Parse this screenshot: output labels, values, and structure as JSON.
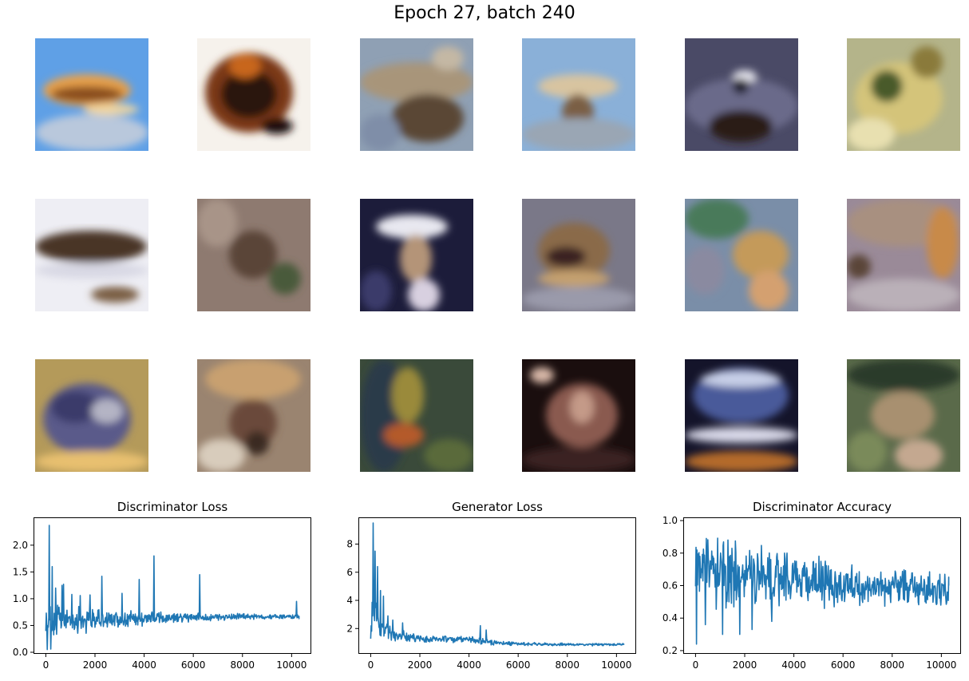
{
  "figure": {
    "suptitle": "Epoch 27, batch 240"
  },
  "samples": [
    {
      "name": "sample-r1c1-sky-orange-blob",
      "bg": "#5fa0e6",
      "shapes": [
        [
          "#e7a04c",
          10,
          45,
          110,
          40
        ],
        [
          "#8a4e1e",
          20,
          60,
          90,
          20
        ],
        [
          "#f0d6a0",
          60,
          82,
          70,
          14
        ],
        [
          "#b9c8dc",
          0,
          95,
          142,
          46
        ]
      ]
    },
    {
      "name": "sample-r1c2-dark-flower",
      "bg": "#f6f2ec",
      "shapes": [
        [
          "#7a3816",
          10,
          18,
          110,
          100
        ],
        [
          "#2a1408",
          30,
          40,
          70,
          60
        ],
        [
          "#c8661e",
          40,
          20,
          40,
          30
        ],
        [
          "#1a0e08",
          80,
          100,
          40,
          20
        ]
      ]
    },
    {
      "name": "sample-r1c3-muddy-landscape",
      "bg": "#8fa0b4",
      "shapes": [
        [
          "#a8957a",
          0,
          30,
          142,
          50
        ],
        [
          "#5a4636",
          40,
          70,
          90,
          60
        ],
        [
          "#7f8ea8",
          0,
          95,
          50,
          46
        ],
        [
          "#c4b8a4",
          90,
          10,
          40,
          30
        ]
      ]
    },
    {
      "name": "sample-r1c4-mushroom-sky",
      "bg": "#8ab0d8",
      "shapes": [
        [
          "#d8c4a0",
          20,
          45,
          100,
          30
        ],
        [
          "#7a5e44",
          50,
          70,
          40,
          50
        ],
        [
          "#9aa6b4",
          0,
          100,
          142,
          41
        ]
      ]
    },
    {
      "name": "sample-r1c5-dark-car",
      "bg": "#4a4a66",
      "shapes": [
        [
          "#6a6a8a",
          0,
          50,
          142,
          70
        ],
        [
          "#e8e8f0",
          60,
          40,
          30,
          15
        ],
        [
          "#2a1a14",
          30,
          90,
          80,
          40
        ],
        [
          "#1c1c2c",
          60,
          50,
          20,
          20
        ]
      ]
    },
    {
      "name": "sample-r1c6-yellow-foliage",
      "bg": "#b4b48a",
      "shapes": [
        [
          "#d4c47a",
          10,
          30,
          110,
          90
        ],
        [
          "#4a5a2a",
          30,
          40,
          40,
          40
        ],
        [
          "#8a7a3a",
          80,
          10,
          40,
          40
        ],
        [
          "#e8e0b0",
          0,
          100,
          60,
          41
        ]
      ]
    },
    {
      "name": "sample-r2c1-snow-dogs",
      "bg": "#eeeef4",
      "shapes": [
        [
          "#4a3426",
          0,
          40,
          140,
          40
        ],
        [
          "#7a5e44",
          70,
          110,
          60,
          20
        ],
        [
          "#d8d8e4",
          0,
          80,
          142,
          20
        ]
      ]
    },
    {
      "name": "sample-r2c2-brown-blur",
      "bg": "#8e7a70",
      "shapes": [
        [
          "#5a4438",
          40,
          40,
          60,
          60
        ],
        [
          "#a89488",
          0,
          0,
          50,
          60
        ],
        [
          "#4a5a3a",
          90,
          80,
          40,
          40
        ]
      ]
    },
    {
      "name": "sample-r2c3-dark-bird",
      "bg": "#1c1c3a",
      "shapes": [
        [
          "#e8e8f0",
          20,
          20,
          90,
          30
        ],
        [
          "#b49478",
          50,
          45,
          40,
          60
        ],
        [
          "#3a3a6a",
          0,
          90,
          40,
          51
        ],
        [
          "#d8d0e0",
          60,
          100,
          40,
          41
        ]
      ]
    },
    {
      "name": "sample-r2c4-rocky-mouth",
      "bg": "#7a7888",
      "shapes": [
        [
          "#8a6a4a",
          20,
          30,
          90,
          70
        ],
        [
          "#3a2420",
          30,
          60,
          50,
          25
        ],
        [
          "#c4a070",
          20,
          90,
          90,
          20
        ],
        [
          "#9a9aaa",
          0,
          110,
          142,
          31
        ]
      ]
    },
    {
      "name": "sample-r2c5-green-mosaic",
      "bg": "#7a8ea8",
      "shapes": [
        [
          "#4a7a5a",
          0,
          0,
          80,
          50
        ],
        [
          "#c49a5a",
          60,
          40,
          70,
          60
        ],
        [
          "#8a8aa0",
          0,
          60,
          50,
          60
        ],
        [
          "#d4a070",
          80,
          90,
          50,
          50
        ]
      ]
    },
    {
      "name": "sample-r2c6-grey-wall",
      "bg": "#9a8a98",
      "shapes": [
        [
          "#a89080",
          0,
          0,
          142,
          60
        ],
        [
          "#c88a4a",
          100,
          10,
          40,
          90
        ],
        [
          "#5a4438",
          0,
          70,
          30,
          30
        ],
        [
          "#bab0b8",
          0,
          100,
          142,
          41
        ]
      ]
    },
    {
      "name": "sample-r3c1-blue-wave",
      "bg": "#b49a5a",
      "shapes": [
        [
          "#5a5a8a",
          10,
          30,
          110,
          90
        ],
        [
          "#3a3a6a",
          20,
          40,
          60,
          40
        ],
        [
          "#b4b4c4",
          70,
          50,
          40,
          30
        ],
        [
          "#e8c070",
          0,
          115,
          142,
          26
        ]
      ]
    },
    {
      "name": "sample-r3c2-texture-face",
      "bg": "#9a8470",
      "shapes": [
        [
          "#c8a070",
          10,
          0,
          120,
          50
        ],
        [
          "#6a4a3a",
          40,
          50,
          60,
          60
        ],
        [
          "#d8ccbc",
          0,
          100,
          60,
          41
        ],
        [
          "#3a2a20",
          60,
          90,
          30,
          30
        ]
      ]
    },
    {
      "name": "sample-r3c3-green-dark",
      "bg": "#3a4a3a",
      "shapes": [
        [
          "#2a3a4a",
          0,
          0,
          60,
          142
        ],
        [
          "#9a8a3a",
          40,
          10,
          40,
          70
        ],
        [
          "#b45a2a",
          30,
          80,
          50,
          30
        ],
        [
          "#5a6a3a",
          80,
          100,
          62,
          41
        ]
      ]
    },
    {
      "name": "sample-r3c4-dark-cat",
      "bg": "#1a0e0e",
      "shapes": [
        [
          "#8a5a50",
          30,
          30,
          90,
          80
        ],
        [
          "#c49a88",
          60,
          40,
          30,
          40
        ],
        [
          "#3a2020",
          0,
          110,
          142,
          31
        ],
        [
          "#d8b8a8",
          10,
          10,
          30,
          20
        ]
      ]
    },
    {
      "name": "sample-r3c5-blue-shoe",
      "bg": "#14142a",
      "shapes": [
        [
          "#4a5a9a",
          10,
          10,
          120,
          70
        ],
        [
          "#c8d0e8",
          20,
          15,
          100,
          20
        ],
        [
          "#d8d8e8",
          0,
          85,
          142,
          20
        ],
        [
          "#b46a2a",
          0,
          115,
          142,
          26
        ]
      ]
    },
    {
      "name": "sample-r3c6-green-weeds",
      "bg": "#5a6a4a",
      "shapes": [
        [
          "#2a3a2a",
          0,
          0,
          142,
          40
        ],
        [
          "#a89070",
          30,
          40,
          80,
          60
        ],
        [
          "#7a8a5a",
          0,
          90,
          50,
          51
        ],
        [
          "#c4a890",
          60,
          100,
          60,
          41
        ]
      ]
    }
  ],
  "chart_data": [
    {
      "type": "line",
      "title": "Discriminator Loss",
      "xlabel": "",
      "ylabel": "",
      "xlim": [
        -500,
        10800
      ],
      "ylim": [
        -0.03,
        2.52
      ],
      "xticks": [
        0,
        2000,
        4000,
        6000,
        8000,
        10000
      ],
      "yticks": [
        0.0,
        0.5,
        1.0,
        1.5,
        2.0
      ],
      "ytick_labels": [
        "0.0",
        "0.5",
        "1.0",
        "1.5",
        "2.0"
      ],
      "grid": false,
      "series": [
        {
          "color": "#1f77b4",
          "band": [
            [
              0,
              0.3,
              0.95
            ],
            [
              200,
              0.15,
              1.0
            ],
            [
              600,
              0.2,
              0.95
            ],
            [
              1000,
              0.3,
              0.9
            ],
            [
              2000,
              0.35,
              0.85
            ],
            [
              3000,
              0.42,
              0.8
            ],
            [
              4000,
              0.48,
              0.8
            ],
            [
              5000,
              0.52,
              0.75
            ],
            [
              6000,
              0.55,
              0.75
            ],
            [
              7000,
              0.58,
              0.74
            ],
            [
              8000,
              0.6,
              0.73
            ],
            [
              9000,
              0.61,
              0.72
            ],
            [
              10000,
              0.62,
              0.72
            ],
            [
              10300,
              0.62,
              0.72
            ]
          ],
          "spikes": [
            [
              50,
              0.05
            ],
            [
              130,
              2.37
            ],
            [
              200,
              0.06
            ],
            [
              260,
              1.6
            ],
            [
              400,
              1.2
            ],
            [
              650,
              1.25
            ],
            [
              720,
              1.27
            ],
            [
              1050,
              1.08
            ],
            [
              1400,
              1.06
            ],
            [
              1800,
              1.07
            ],
            [
              2270,
              1.42
            ],
            [
              3100,
              1.1
            ],
            [
              3800,
              1.36
            ],
            [
              4400,
              1.8
            ],
            [
              6250,
              1.45
            ],
            [
              10200,
              0.95
            ]
          ],
          "last": 0.68
        }
      ]
    },
    {
      "type": "line",
      "title": "Generator Loss",
      "xlabel": "",
      "ylabel": "",
      "xlim": [
        -500,
        10800
      ],
      "ylim": [
        0.2,
        9.9
      ],
      "xticks": [
        0,
        2000,
        4000,
        6000,
        8000,
        10000
      ],
      "yticks": [
        2,
        4,
        6,
        8
      ],
      "ytick_labels": [
        "2",
        "4",
        "6",
        "8"
      ],
      "grid": false,
      "series": [
        {
          "color": "#1f77b4",
          "band": [
            [
              0,
              0.7,
              3.5
            ],
            [
              150,
              1.5,
              6.0
            ],
            [
              300,
              1.2,
              4.2
            ],
            [
              500,
              1.1,
              3.0
            ],
            [
              800,
              1.0,
              2.2
            ],
            [
              1200,
              1.0,
              1.9
            ],
            [
              2000,
              0.95,
              1.6
            ],
            [
              3000,
              0.95,
              1.5
            ],
            [
              4000,
              0.9,
              1.5
            ],
            [
              4600,
              0.85,
              1.3
            ],
            [
              5000,
              0.8,
              1.2
            ],
            [
              6000,
              0.78,
              1.05
            ],
            [
              7000,
              0.75,
              1.0
            ],
            [
              8000,
              0.75,
              0.98
            ],
            [
              9000,
              0.75,
              0.98
            ],
            [
              10300,
              0.78,
              0.98
            ]
          ],
          "spikes": [
            [
              100,
              9.5
            ],
            [
              180,
              7.5
            ],
            [
              280,
              6.4
            ],
            [
              400,
              4.7
            ],
            [
              520,
              4.3
            ],
            [
              700,
              2.9
            ],
            [
              900,
              2.6
            ],
            [
              1300,
              2.4
            ],
            [
              4450,
              2.2
            ],
            [
              4700,
              1.9
            ]
          ],
          "last": 0.85
        }
      ]
    },
    {
      "type": "line",
      "title": "Discriminator Accuracy",
      "xlabel": "",
      "ylabel": "",
      "xlim": [
        -500,
        10800
      ],
      "ylim": [
        0.18,
        1.02
      ],
      "xticks": [
        0,
        2000,
        4000,
        6000,
        8000,
        10000
      ],
      "yticks": [
        0.2,
        0.4,
        0.6,
        0.8,
        1.0
      ],
      "ytick_labels": [
        "0.2",
        "0.4",
        "0.6",
        "0.8",
        "1.0"
      ],
      "grid": false,
      "series": [
        {
          "color": "#1f77b4",
          "band": [
            [
              0,
              0.45,
              1.0
            ],
            [
              300,
              0.45,
              0.98
            ],
            [
              1000,
              0.45,
              0.95
            ],
            [
              2000,
              0.45,
              0.9
            ],
            [
              3000,
              0.45,
              0.87
            ],
            [
              4000,
              0.45,
              0.84
            ],
            [
              5000,
              0.45,
              0.8
            ],
            [
              6000,
              0.45,
              0.75
            ],
            [
              7000,
              0.46,
              0.72
            ],
            [
              8000,
              0.46,
              0.72
            ],
            [
              9000,
              0.46,
              0.7
            ],
            [
              10300,
              0.46,
              0.7
            ]
          ],
          "spikes": [
            [
              40,
              0.24
            ],
            [
              1100,
              0.3
            ],
            [
              1800,
              0.3
            ],
            [
              2300,
              0.33
            ],
            [
              400,
              0.36
            ],
            [
              3100,
              0.38
            ]
          ],
          "last": 0.6
        }
      ]
    }
  ]
}
